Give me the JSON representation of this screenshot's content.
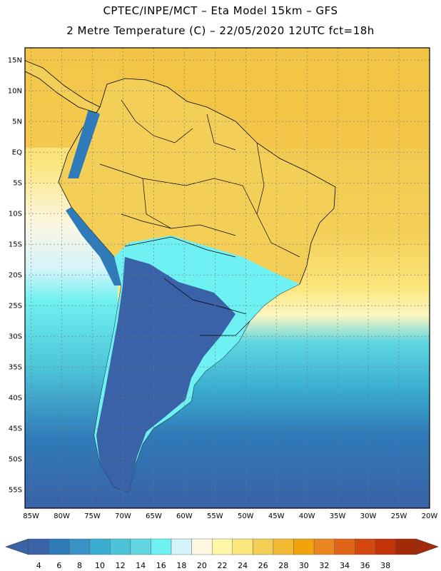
{
  "header": {
    "line1": "CPTEC/INPE/MCT –  Eta Model 15km – GFS",
    "line2": "2 Metre Temperature (C) – 22/05/2020 12UTC fct=18h"
  },
  "map": {
    "lat_labels": [
      "15N",
      "10N",
      "5N",
      "EQ",
      "5S",
      "10S",
      "15S",
      "20S",
      "25S",
      "30S",
      "35S",
      "40S",
      "45S",
      "50S",
      "55S"
    ],
    "lon_labels": [
      "85W",
      "80W",
      "75W",
      "70W",
      "65W",
      "60W",
      "55W",
      "50W",
      "45W",
      "40W",
      "35W",
      "30W",
      "25W",
      "20W"
    ],
    "lat_range": [
      17,
      -58
    ],
    "lon_range": [
      -86,
      -20
    ]
  },
  "colorbar": {
    "labels": [
      "4",
      "6",
      "8",
      "10",
      "12",
      "14",
      "16",
      "18",
      "20",
      "22",
      "24",
      "26",
      "28",
      "30",
      "32",
      "34",
      "36",
      "38"
    ],
    "colors": [
      "#3a62a8",
      "#2f7ab8",
      "#3a93c6",
      "#3aaed0",
      "#4cc3d8",
      "#5fd6e2",
      "#6ff0f2",
      "#d4f4fa",
      "#fdf6e0",
      "#fdf6a6",
      "#fbe67c",
      "#f4cf58",
      "#f2bb33",
      "#f0a30a",
      "#ea8520",
      "#e06418",
      "#d44810",
      "#c2330a",
      "#a22a08"
    ],
    "low_color": "#3a62a8",
    "high_color": "#a22a08"
  },
  "style": {
    "ocean_cold": "#3a62a8",
    "ocean_cool": "#5fd6e2",
    "land_warm": "#f4cf58",
    "ocean_warm": "#f2bb33",
    "frame": "#000000"
  }
}
